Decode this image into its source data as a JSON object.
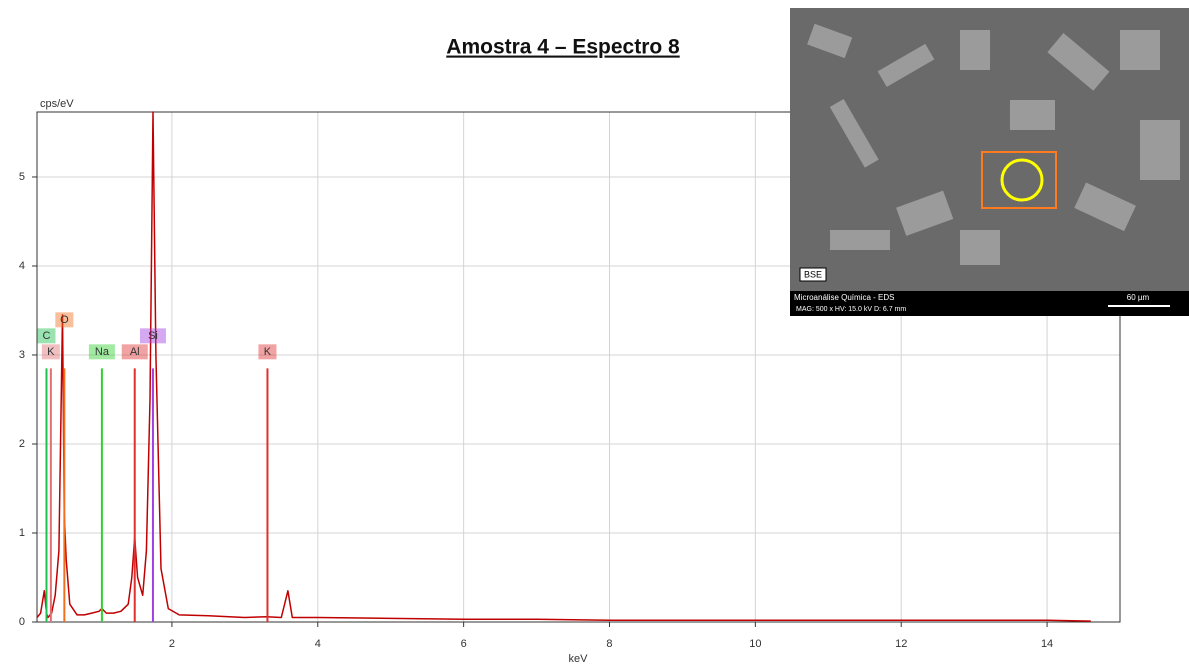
{
  "chart_data": {
    "type": "line",
    "title": "Amostra 4 – Espectro 8",
    "y_label": "cps/eV",
    "x_label": "keV",
    "x": [
      0.15,
      0.2,
      0.25,
      0.28,
      0.3,
      0.35,
      0.4,
      0.45,
      0.5,
      0.525,
      0.55,
      0.6,
      0.7,
      0.8,
      0.9,
      1.0,
      1.04,
      1.1,
      1.2,
      1.3,
      1.4,
      1.45,
      1.49,
      1.53,
      1.6,
      1.65,
      1.7,
      1.74,
      1.78,
      1.85,
      1.95,
      2.1,
      2.5,
      3.0,
      3.3,
      3.5,
      3.59,
      3.65,
      4,
      5,
      6,
      7,
      8,
      9,
      10,
      11,
      12,
      13,
      14,
      14.6
    ],
    "values": [
      0.05,
      0.1,
      0.35,
      0.1,
      0.05,
      0.1,
      0.3,
      0.8,
      3.45,
      1.2,
      0.7,
      0.2,
      0.08,
      0.08,
      0.1,
      0.12,
      0.15,
      0.1,
      0.1,
      0.12,
      0.2,
      0.5,
      0.95,
      0.5,
      0.3,
      0.8,
      2.5,
      5.73,
      3.0,
      0.6,
      0.15,
      0.08,
      0.07,
      0.05,
      0.06,
      0.05,
      0.35,
      0.05,
      0.05,
      0.04,
      0.03,
      0.03,
      0.02,
      0.02,
      0.02,
      0.02,
      0.02,
      0.02,
      0.02,
      0.01
    ],
    "color": "#c00000",
    "markers": [
      {
        "label": "K",
        "x": 0.34,
        "height": 2.85,
        "color": "#e07070"
      },
      {
        "label": "C",
        "x": 0.28,
        "height": 2.85,
        "color": "#20c050"
      },
      {
        "label": "O",
        "x": 0.525,
        "height": 2.85,
        "color": "#f07020"
      },
      {
        "label": "Na",
        "x": 1.04,
        "height": 2.85,
        "color": "#30d030"
      },
      {
        "label": "Al",
        "x": 1.49,
        "height": 2.85,
        "color": "#e03030"
      },
      {
        "label": "Si",
        "x": 1.74,
        "height": 2.85,
        "color": "#a040e0"
      },
      {
        "label": "K",
        "x": 3.31,
        "height": 2.85,
        "color": "#e03030"
      }
    ],
    "xlim": [
      0.15,
      15
    ],
    "ylim": [
      0,
      5.73
    ],
    "xticks": [
      2,
      4,
      6,
      8,
      10,
      12,
      14
    ],
    "yticks": [
      0,
      1,
      2,
      3,
      4,
      5
    ],
    "grid": true
  },
  "inset": {
    "detector": "BSE",
    "caption": "Microanálise Química - EDS",
    "settings": "MAG: 500 x   HV: 15.0 kV   D: 6.7 mm",
    "scale": "60 µm"
  }
}
